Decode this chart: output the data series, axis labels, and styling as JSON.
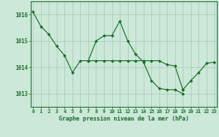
{
  "background_color": "#cbe8d8",
  "grid_color": "#a8ccb8",
  "line_color": "#1a6b2a",
  "title": "Graphe pression niveau de la mer (hPa)",
  "hours": [
    0,
    1,
    2,
    3,
    4,
    5,
    6,
    7,
    8,
    9,
    10,
    11,
    12,
    13,
    14,
    15,
    16,
    17,
    18,
    19,
    20,
    21,
    22,
    23
  ],
  "yticks": [
    1013,
    1014,
    1015,
    1016
  ],
  "ylim": [
    1012.5,
    1016.5
  ],
  "xlim": [
    -0.3,
    23.3
  ],
  "series1": [
    1016.1,
    1015.55,
    1015.25,
    1014.8,
    1014.45,
    1013.8,
    1014.25,
    1014.25,
    1015.0,
    1015.2,
    1015.2,
    1015.75,
    1015.0,
    1014.5,
    1014.2,
    1013.5,
    1013.2,
    1013.15,
    1013.15,
    1013.0,
    null,
    null,
    null,
    null
  ],
  "series2": [
    null,
    null,
    null,
    null,
    null,
    null,
    null,
    1014.25,
    1014.25,
    1014.25,
    1014.25,
    1014.25,
    1014.25,
    1014.25,
    1014.25,
    1014.25,
    1014.25,
    1014.1,
    1014.05,
    1013.15,
    null,
    null,
    null,
    null
  ],
  "series3": [
    null,
    null,
    null,
    null,
    null,
    null,
    null,
    null,
    null,
    null,
    null,
    null,
    null,
    null,
    null,
    null,
    null,
    null,
    null,
    1013.15,
    1013.5,
    1013.8,
    1014.15,
    1014.2
  ]
}
